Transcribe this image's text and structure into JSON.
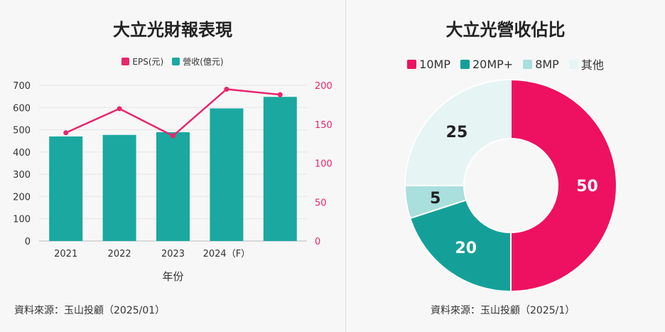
{
  "left": {
    "title": "大立光財報表現",
    "source": "資料來源：玉山投顧（2025/01）"
  },
  "right": {
    "title": "大立光營收佔比",
    "source": "資料來源：玉山投顧（2025/1）"
  },
  "colors": {
    "revenue_bar": "#1aa8a0",
    "eps_line": "#e8266e",
    "slice_10mp": "#ee1161",
    "slice_20mp": "#14a098",
    "slice_8mp": "#a9dfdd",
    "slice_other": "#e6f4f4"
  },
  "chart_data": [
    {
      "type": "bar",
      "title": "大立光財報表現",
      "categories": [
        "2021",
        "2022",
        "2023",
        "2024（F）",
        ""
      ],
      "xlabel": "年份",
      "ylim": [
        0,
        700
      ],
      "y2lim": [
        0,
        200
      ],
      "y_ticks": [
        0,
        100,
        200,
        300,
        400,
        500,
        600,
        700
      ],
      "y2_ticks": [
        0,
        50,
        100,
        150,
        200
      ],
      "legend_placement": "top-center",
      "grid": true,
      "series": [
        {
          "name": "營收(億元)",
          "kind": "bar",
          "axis": "left",
          "values": [
            470,
            477,
            489,
            596,
            648
          ]
        },
        {
          "name": "EPS(元)",
          "kind": "line",
          "axis": "right",
          "values": [
            139,
            170,
            135,
            195,
            188
          ]
        }
      ]
    },
    {
      "type": "pie",
      "title": "大立光營收佔比",
      "donut": true,
      "legend_placement": "top-center",
      "labels": [
        "10MP",
        "20MP+",
        "8MP",
        "其他"
      ],
      "values": [
        50,
        20,
        5,
        25
      ]
    }
  ]
}
